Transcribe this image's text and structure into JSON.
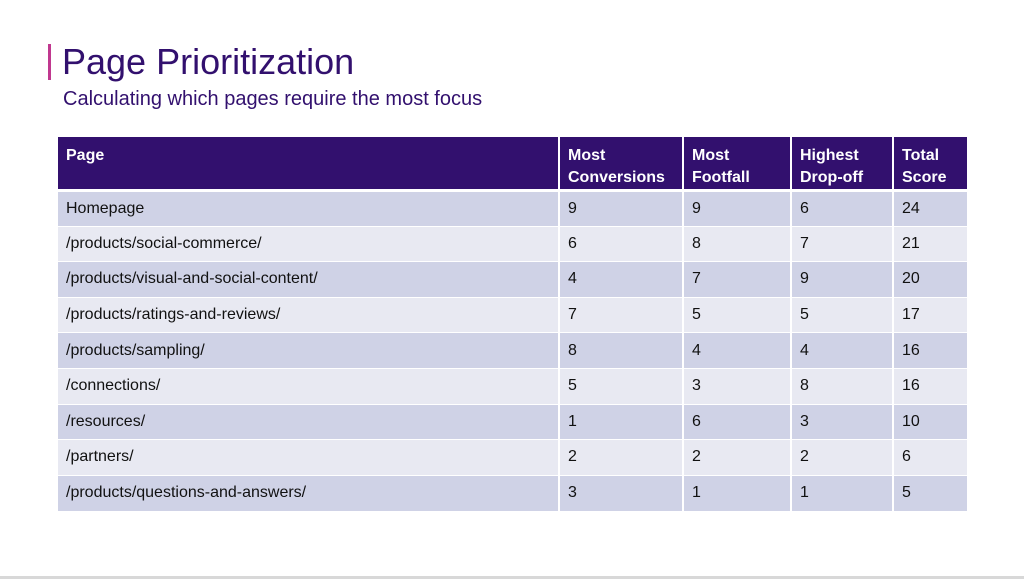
{
  "slide": {
    "title": "Page Prioritization",
    "subtitle": "Calculating which pages require the most focus",
    "colors": {
      "accent_bar": "#c0388f",
      "title_text": "#32106e",
      "header_bg": "#32106e",
      "row_dark": "#cfd2e6",
      "row_light": "#e8e9f2"
    }
  },
  "table": {
    "headers": {
      "page": "Page",
      "conversions_line1": "Most",
      "conversions_line2": "Conversions",
      "footfall_line1": "Most",
      "footfall_line2": "Footfall",
      "dropoff_line1": "Highest",
      "dropoff_line2": "Drop-off",
      "total_line1": "Total",
      "total_line2": "Score"
    },
    "rows": [
      {
        "page": "Homepage",
        "conversions": "9",
        "footfall": "9",
        "dropoff": "6",
        "total": "24"
      },
      {
        "page": "/products/social-commerce/",
        "conversions": "6",
        "footfall": "8",
        "dropoff": "7",
        "total": "21"
      },
      {
        "page": "/products/visual-and-social-content/",
        "conversions": "4",
        "footfall": "7",
        "dropoff": "9",
        "total": "20"
      },
      {
        "page": "/products/ratings-and-reviews/",
        "conversions": "7",
        "footfall": "5",
        "dropoff": "5",
        "total": "17"
      },
      {
        "page": "/products/sampling/",
        "conversions": "8",
        "footfall": "4",
        "dropoff": "4",
        "total": "16"
      },
      {
        "page": "/connections/",
        "conversions": "5",
        "footfall": "3",
        "dropoff": "8",
        "total": "16"
      },
      {
        "page": "/resources/",
        "conversions": "1",
        "footfall": "6",
        "dropoff": "3",
        "total": "10"
      },
      {
        "page": "/partners/",
        "conversions": "2",
        "footfall": "2",
        "dropoff": "2",
        "total": "6"
      },
      {
        "page": "/products/questions-and-answers/",
        "conversions": "3",
        "footfall": "1",
        "dropoff": "1",
        "total": "5"
      }
    ]
  }
}
